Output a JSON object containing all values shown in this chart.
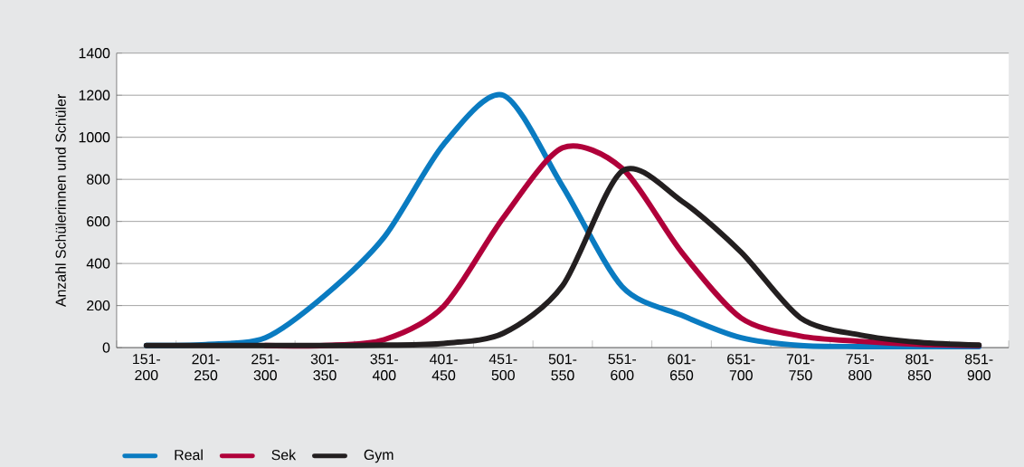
{
  "chart_data": {
    "type": "line",
    "ylabel": "Anzahl Schülerinnen und Schüler",
    "categories": [
      "151-200",
      "201-250",
      "251-300",
      "301-350",
      "351-400",
      "401-450",
      "451-500",
      "501-550",
      "551-600",
      "601-650",
      "651-700",
      "701-750",
      "751-800",
      "801-850",
      "851-900"
    ],
    "series": [
      {
        "name": "Real",
        "color": "#0a7bc1",
        "values": [
          10,
          15,
          47,
          248,
          526,
          967,
          1200,
          766,
          290,
          154,
          47,
          10,
          5,
          5,
          5
        ]
      },
      {
        "name": "Sek",
        "color": "#b0003a",
        "values": [
          null,
          null,
          10,
          10,
          38,
          197,
          617,
          950,
          852,
          454,
          141,
          55,
          30,
          15,
          10
        ]
      },
      {
        "name": "Gym",
        "color": "#231f20",
        "values": [
          10,
          10,
          10,
          10,
          12,
          20,
          68,
          295,
          839,
          697,
          454,
          141,
          60,
          25,
          12
        ]
      }
    ],
    "ylim": [
      0,
      1400
    ],
    "yticks": [
      0,
      200,
      400,
      600,
      800,
      1000,
      1200,
      1400
    ],
    "grid": "y",
    "legend": "bottom left",
    "marker": "none",
    "line_style": "solid"
  }
}
